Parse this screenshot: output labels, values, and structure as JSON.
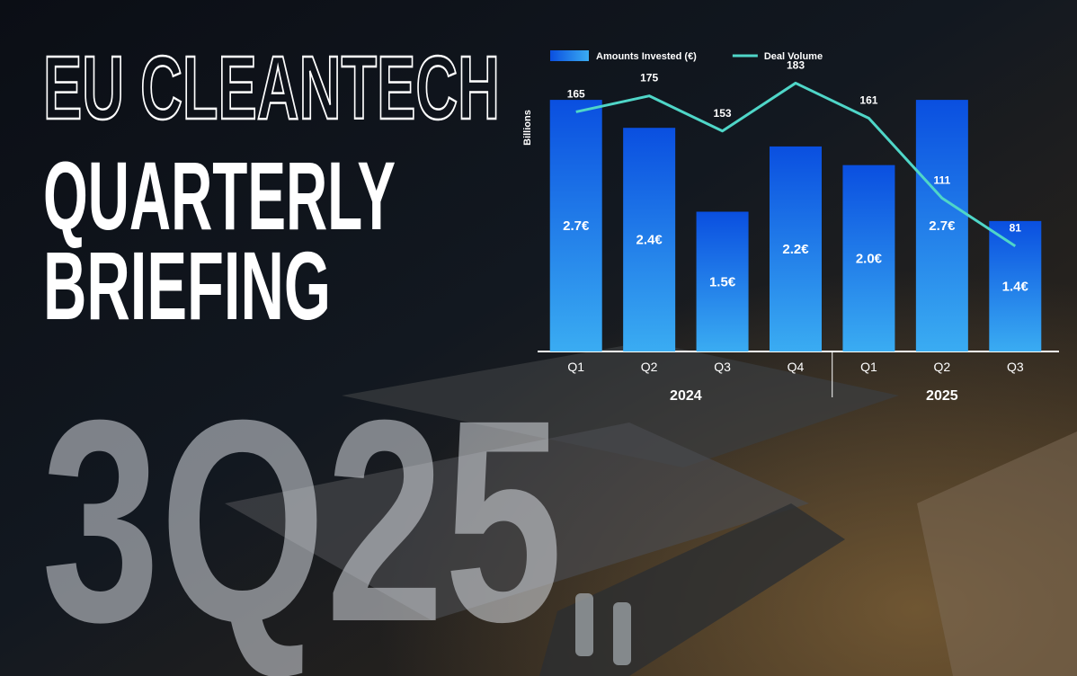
{
  "cover": {
    "line1": "EU CLEANTECH",
    "line2": "QUARTERLY",
    "line3": "BRIEFING",
    "edition": "3Q25"
  },
  "chart_data": {
    "type": "bar-line",
    "y_label": "Billions",
    "groups": [
      {
        "name": "2024",
        "categories": [
          "Q1",
          "Q2",
          "Q3",
          "Q4"
        ]
      },
      {
        "name": "2025",
        "categories": [
          "Q1",
          "Q2",
          "Q3"
        ]
      }
    ],
    "ylim": [
      0,
      3.0
    ],
    "y2lim": [
      15,
      190
    ],
    "legend": "top-left",
    "series": [
      {
        "name": "Amounts Invested (€)",
        "type": "bar",
        "color": "#0a55e6",
        "values": [
          2.7,
          2.4,
          1.5,
          2.2,
          2.0,
          2.7,
          1.4
        ],
        "value_labels": [
          "2.7€",
          "2.4€",
          "1.5€",
          "2.2€",
          "2.0€",
          "2.7€",
          "1.4€"
        ]
      },
      {
        "name": "Deal Volume",
        "type": "line",
        "axis": "y2",
        "color": "#4fd6c8",
        "values": [
          165,
          175,
          153,
          183,
          161,
          111,
          81
        ]
      }
    ]
  }
}
